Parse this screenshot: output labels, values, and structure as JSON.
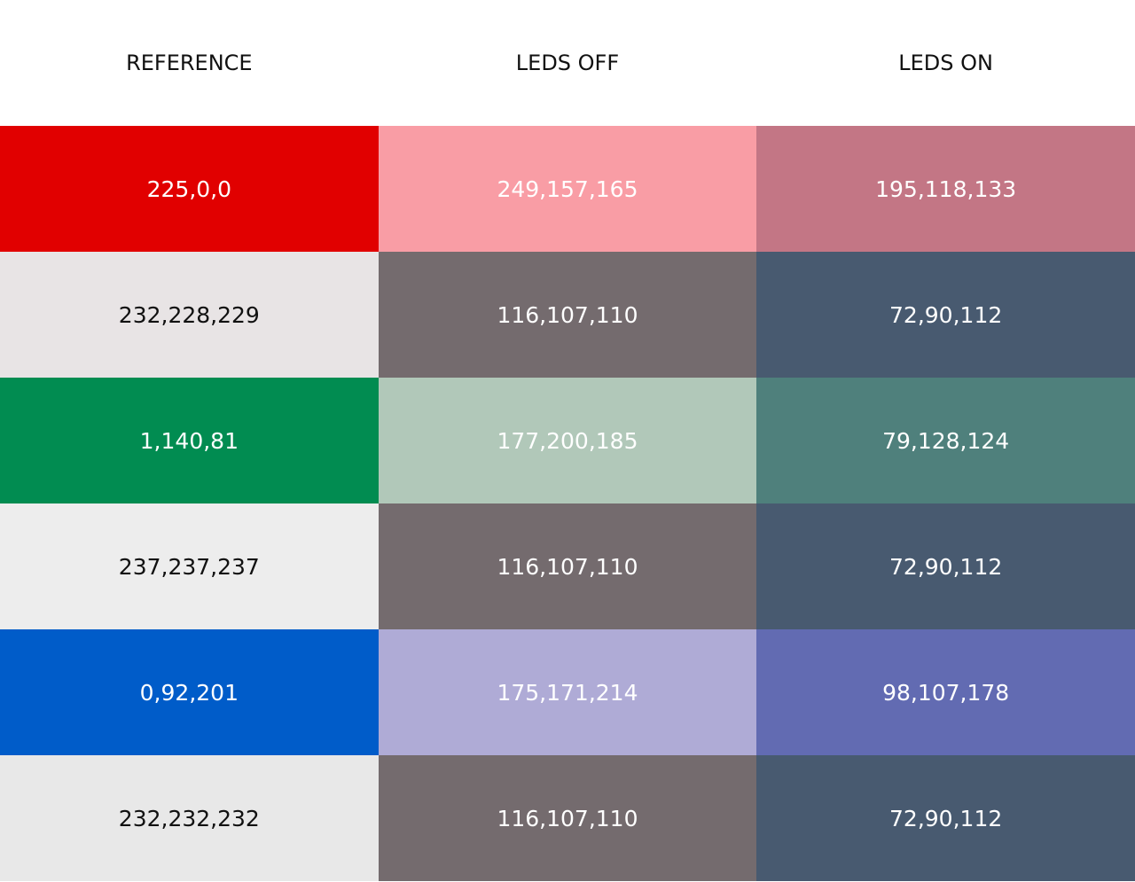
{
  "headers": [
    "REFERENCE",
    "LEDS OFF",
    "LEDS ON"
  ],
  "rows": [
    {
      "reference": {
        "label": "225,0,0",
        "color": "#e10000"
      },
      "leds_off": {
        "label": "249,157,165",
        "color": "#f99da5"
      },
      "leds_on": {
        "label": "195,118,133",
        "color": "#c37685"
      }
    },
    {
      "reference": {
        "label": "232,228,229",
        "color": "#e8e4e5"
      },
      "leds_off": {
        "label": "116,107,110",
        "color": "#746b6e"
      },
      "leds_on": {
        "label": "72,90,112",
        "color": "#485a70"
      }
    },
    {
      "reference": {
        "label": "1,140,81",
        "color": "#018c51"
      },
      "leds_off": {
        "label": "177,200,185",
        "color": "#b1c8b9"
      },
      "leds_on": {
        "label": "79,128,124",
        "color": "#4f807c"
      }
    },
    {
      "reference": {
        "label": "237,237,237",
        "color": "#ededed"
      },
      "leds_off": {
        "label": "116,107,110",
        "color": "#746b6e"
      },
      "leds_on": {
        "label": "72,90,112",
        "color": "#485a70"
      }
    },
    {
      "reference": {
        "label": "0,92,201",
        "color": "#005cc9"
      },
      "leds_off": {
        "label": "175,171,214",
        "color": "#afabd6"
      },
      "leds_on": {
        "label": "98,107,178",
        "color": "#626bb2"
      }
    },
    {
      "reference": {
        "label": "232,232,232",
        "color": "#e8e8e8"
      },
      "leds_off": {
        "label": "116,107,110",
        "color": "#746b6e"
      },
      "leds_on": {
        "label": "72,90,112",
        "color": "#485a70"
      }
    }
  ]
}
